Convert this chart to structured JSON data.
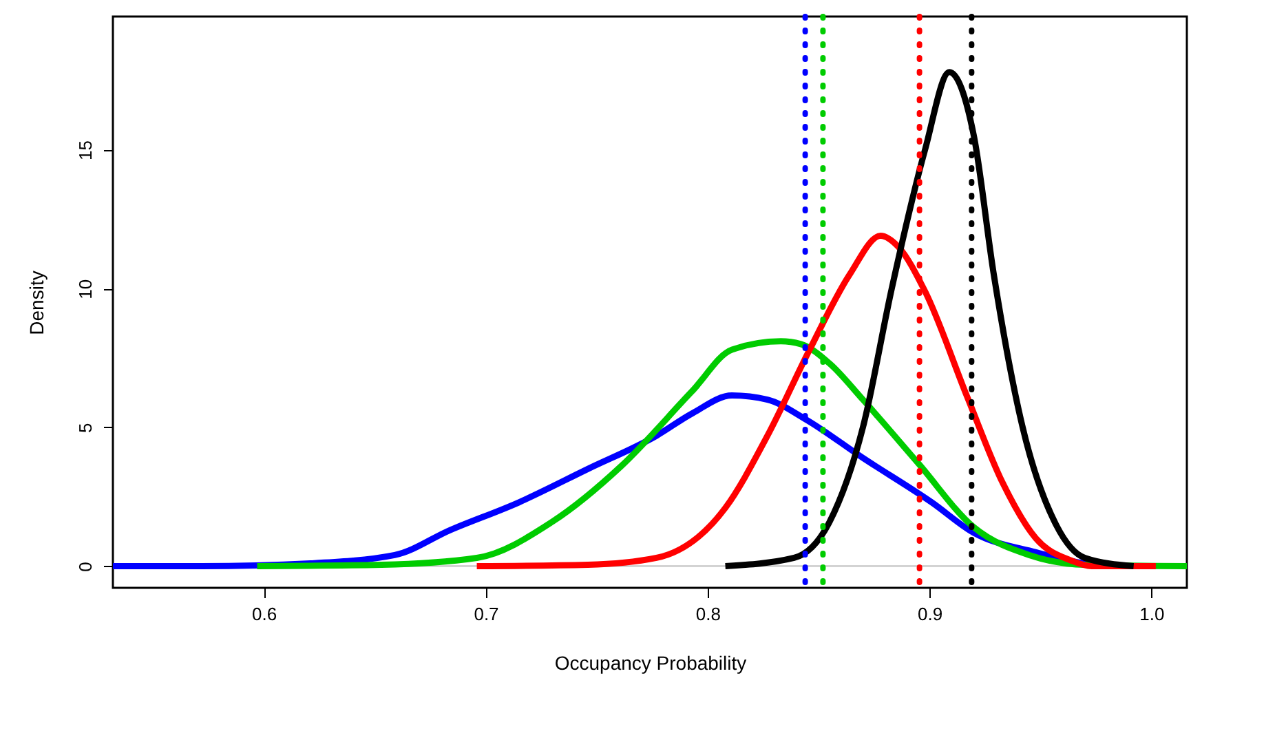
{
  "chart_data": {
    "type": "line",
    "xlabel": "Occupancy Probability",
    "ylabel": "Density",
    "xlim": [
      0.532,
      1.016
    ],
    "ylim": [
      -0.78,
      19.8
    ],
    "xticks": [
      0.6,
      0.7,
      0.8,
      0.9,
      {
        "value": 1.0,
        "label": "1.0"
      }
    ],
    "yticks": [
      0,
      5,
      10,
      15
    ],
    "grid": false,
    "legend": false,
    "marker": "none",
    "line_style": "solid",
    "series": [
      {
        "color": "#0000ff",
        "x": [
          0.532,
          0.572,
          0.621,
          0.659,
          0.684,
          0.715,
          0.746,
          0.777,
          0.793,
          0.811,
          0.827,
          0.844,
          0.87,
          0.901,
          0.92,
          0.948,
          0.97,
          0.988,
          1.0
        ],
        "values": [
          0,
          0,
          0.1,
          0.4,
          1.3,
          2.3,
          3.5,
          4.7,
          5.5,
          6.15,
          6.0,
          5.3,
          3.9,
          2.3,
          1.2,
          0.5,
          0.1,
          0,
          0
        ]
      },
      {
        "color": "#00cc00",
        "x": [
          0.597,
          0.653,
          0.696,
          0.73,
          0.761,
          0.793,
          0.811,
          0.833,
          0.842,
          0.855,
          0.87,
          0.895,
          0.92,
          0.945,
          0.97,
          1.016
        ],
        "values": [
          0,
          0.05,
          0.3,
          1.6,
          3.6,
          6.3,
          7.8,
          8.1,
          8.0,
          7.3,
          6.0,
          3.7,
          1.4,
          0.4,
          0.05,
          0
        ]
      },
      {
        "color": "#ff0000",
        "x": [
          0.696,
          0.746,
          0.777,
          0.808,
          0.827,
          0.846,
          0.864,
          0.878,
          0.886,
          0.898,
          0.917,
          0.933,
          0.948,
          0.964,
          0.973,
          1.002
        ],
        "values": [
          0,
          0.05,
          0.3,
          2.1,
          4.7,
          7.8,
          10.5,
          11.9,
          11.5,
          9.9,
          6.1,
          3.0,
          1.0,
          0.2,
          0,
          0
        ]
      },
      {
        "color": "#000000",
        "x": [
          0.808,
          0.839,
          0.855,
          0.87,
          0.883,
          0.898,
          0.909,
          0.92,
          0.929,
          0.942,
          0.957,
          0.97,
          0.992
        ],
        "values": [
          0,
          0.3,
          1.6,
          5.0,
          10.0,
          15.0,
          17.8,
          15.5,
          10.5,
          5.0,
          1.5,
          0.3,
          0
        ]
      }
    ],
    "ref_lines": [
      {
        "axis": "y",
        "value": 0,
        "color": "#d3d3d3",
        "line_style": "solid"
      },
      {
        "axis": "x",
        "value": 0.844,
        "color": "#0000ff",
        "line_style": "dotted"
      },
      {
        "axis": "x",
        "value": 0.852,
        "color": "#00cc00",
        "line_style": "dotted"
      },
      {
        "axis": "x",
        "value": 0.8955,
        "color": "#ff0000",
        "line_style": "dotted"
      },
      {
        "axis": "x",
        "value": 0.919,
        "color": "#000000",
        "line_style": "dotted"
      }
    ]
  }
}
